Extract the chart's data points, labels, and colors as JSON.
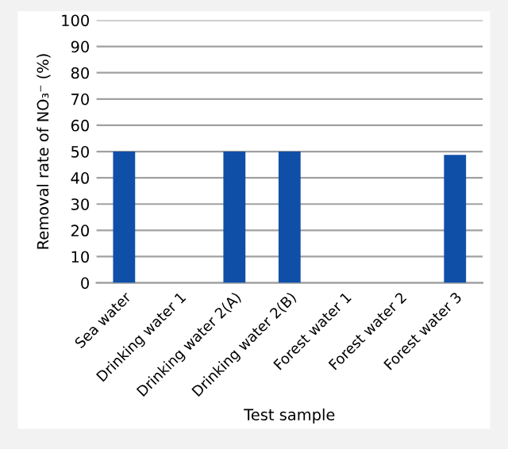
{
  "chart_data": {
    "type": "bar",
    "xlabel": "Test sample",
    "ylabel": "Removal rate of NO₃⁻ (%)",
    "categories": [
      "Sea water",
      "Drinking water 1",
      "Drinking water 2(A)",
      "Drinking water 2(B)",
      "Forest water 1",
      "Forest water 2",
      "Forest water 3"
    ],
    "values": [
      50,
      0,
      50,
      50,
      0,
      0,
      48.7
    ],
    "color": "#0f4fa8",
    "ylim": [
      0,
      100
    ],
    "yticks": [
      0,
      10,
      20,
      30,
      40,
      50,
      60,
      70,
      80,
      90,
      100
    ],
    "grid": "y",
    "legend": false
  }
}
